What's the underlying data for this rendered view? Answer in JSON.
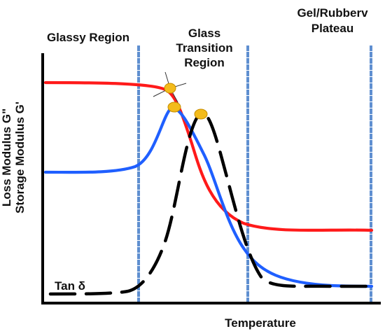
{
  "chart_data": {
    "type": "line",
    "xlabel": "Temperature",
    "ylabel_lines": [
      {
        "text": "Storage Modulus G'",
        "color": "#ff1a1a"
      },
      {
        "text": "Loss Modulus G\"",
        "color": "#1f5fff"
      }
    ],
    "regions": [
      {
        "label_lines": [
          "Glassy Region"
        ]
      },
      {
        "label_lines": [
          "Glass",
          "Transition",
          "Region"
        ]
      },
      {
        "label_lines": [
          "Gel/Rubberv",
          "Plateau"
        ]
      }
    ],
    "annotation": "Tan δ",
    "dividers": [
      {
        "name": "glassy-transition-divider"
      },
      {
        "name": "transition-plateau-divider"
      },
      {
        "name": "plateau-end-divider"
      }
    ],
    "series": [
      {
        "key": "storage",
        "color": "#ff1a1a",
        "style": "solid"
      },
      {
        "key": "loss",
        "color": "#1f5fff",
        "style": "solid"
      },
      {
        "key": "tan",
        "color": "#000000",
        "style": "dashed"
      }
    ],
    "markers": [
      {
        "name": "storage-onset-marker",
        "color": "#f3bb1b",
        "with_crosshair": true
      },
      {
        "name": "loss-peak-marker",
        "color": "#f3bb1b",
        "with_crosshair": false
      },
      {
        "name": "tan-delta-peak-marker",
        "color": "#f3bb1b",
        "with_crosshair": false
      }
    ]
  }
}
